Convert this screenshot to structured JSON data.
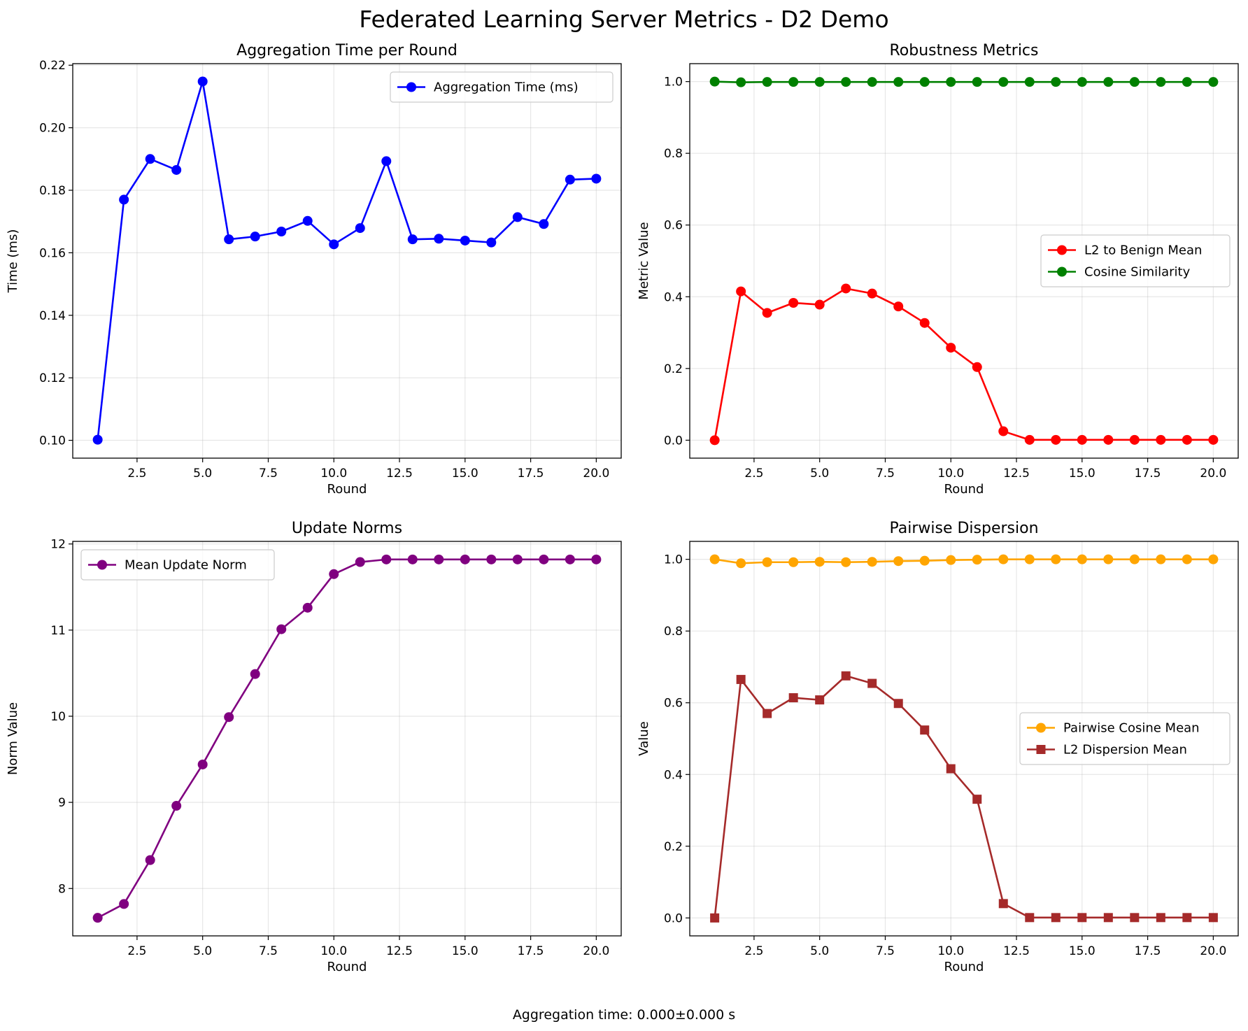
{
  "figure": {
    "title": "Federated Learning Server Metrics - D2 Demo",
    "footer": "Aggregation time: 0.000±0.000 s"
  },
  "chart_data": [
    {
      "type": "line",
      "title": "Aggregation Time per Round",
      "xlabel": "Round",
      "ylabel": "Time (ms)",
      "xlim": [
        0.05,
        20.95
      ],
      "ylim": [
        0.0943,
        0.2205
      ],
      "xticks": [
        2.5,
        5.0,
        7.5,
        10.0,
        12.5,
        15.0,
        17.5,
        20.0
      ],
      "xtick_labels": [
        "2.5",
        "5.0",
        "7.5",
        "10.0",
        "12.5",
        "15.0",
        "17.5",
        "20.0"
      ],
      "yticks": [
        0.1,
        0.12,
        0.14,
        0.16,
        0.18,
        0.2,
        0.22
      ],
      "ytick_labels": [
        "0.10",
        "0.12",
        "0.14",
        "0.16",
        "0.18",
        "0.20",
        "0.22"
      ],
      "grid": true,
      "legend": "upper right",
      "x": [
        1,
        2,
        3,
        4,
        5,
        6,
        7,
        8,
        9,
        10,
        11,
        12,
        13,
        14,
        15,
        16,
        17,
        18,
        19,
        20
      ],
      "series": [
        {
          "name": "Aggregation Time (ms)",
          "color": "#0000ff",
          "marker": "circle",
          "values": [
            0.1002,
            0.177,
            0.19,
            0.1865,
            0.2148,
            0.1643,
            0.1652,
            0.1668,
            0.1702,
            0.1627,
            0.1679,
            0.1893,
            0.1643,
            0.1645,
            0.1639,
            0.1633,
            0.1714,
            0.1692,
            0.1834,
            0.1837
          ]
        }
      ]
    },
    {
      "type": "line",
      "title": "Robustness Metrics",
      "xlabel": "Round",
      "ylabel": "Metric Value",
      "xlim": [
        0.05,
        20.95
      ],
      "ylim": [
        -0.05,
        1.05
      ],
      "xticks": [
        2.5,
        5.0,
        7.5,
        10.0,
        12.5,
        15.0,
        17.5,
        20.0
      ],
      "xtick_labels": [
        "2.5",
        "5.0",
        "7.5",
        "10.0",
        "12.5",
        "15.0",
        "17.5",
        "20.0"
      ],
      "yticks": [
        0.0,
        0.2,
        0.4,
        0.6,
        0.8,
        1.0
      ],
      "ytick_labels": [
        "0.0",
        "0.2",
        "0.4",
        "0.6",
        "0.8",
        "1.0"
      ],
      "grid": true,
      "legend": "center right",
      "x": [
        1,
        2,
        3,
        4,
        5,
        6,
        7,
        8,
        9,
        10,
        11,
        12,
        13,
        14,
        15,
        16,
        17,
        18,
        19,
        20
      ],
      "series": [
        {
          "name": "L2 to Benign Mean",
          "color": "#ff0000",
          "marker": "circle",
          "values": [
            0.0,
            0.415,
            0.355,
            0.383,
            0.378,
            0.423,
            0.409,
            0.373,
            0.327,
            0.258,
            0.204,
            0.025,
            0.001,
            0.001,
            0.001,
            0.001,
            0.001,
            0.001,
            0.001,
            0.001
          ]
        },
        {
          "name": "Cosine Similarity",
          "color": "#008000",
          "marker": "circle",
          "values": [
            1.0,
            0.998,
            0.999,
            0.999,
            0.999,
            0.999,
            0.999,
            0.999,
            0.999,
            0.999,
            0.999,
            0.999,
            0.999,
            0.999,
            0.999,
            0.999,
            0.999,
            0.999,
            0.999,
            0.999
          ]
        }
      ]
    },
    {
      "type": "line",
      "title": "Update Norms",
      "xlabel": "Round",
      "ylabel": "Norm Value",
      "xlim": [
        0.05,
        20.95
      ],
      "ylim": [
        7.45,
        12.03
      ],
      "xticks": [
        2.5,
        5.0,
        7.5,
        10.0,
        12.5,
        15.0,
        17.5,
        20.0
      ],
      "xtick_labels": [
        "2.5",
        "5.0",
        "7.5",
        "10.0",
        "12.5",
        "15.0",
        "17.5",
        "20.0"
      ],
      "yticks": [
        8,
        9,
        10,
        11,
        12
      ],
      "ytick_labels": [
        "8",
        "9",
        "10",
        "11",
        "12"
      ],
      "grid": true,
      "legend": "upper left",
      "x": [
        1,
        2,
        3,
        4,
        5,
        6,
        7,
        8,
        9,
        10,
        11,
        12,
        13,
        14,
        15,
        16,
        17,
        18,
        19,
        20
      ],
      "series": [
        {
          "name": "Mean Update Norm",
          "color": "#800080",
          "marker": "circle",
          "values": [
            7.66,
            7.82,
            8.33,
            8.96,
            9.44,
            9.99,
            10.49,
            11.01,
            11.26,
            11.65,
            11.79,
            11.82,
            11.82,
            11.82,
            11.82,
            11.82,
            11.82,
            11.82,
            11.82,
            11.82
          ]
        }
      ]
    },
    {
      "type": "line",
      "title": "Pairwise Dispersion",
      "xlabel": "Round",
      "ylabel": "Value",
      "xlim": [
        0.05,
        20.95
      ],
      "ylim": [
        -0.05,
        1.05
      ],
      "xticks": [
        2.5,
        5.0,
        7.5,
        10.0,
        12.5,
        15.0,
        17.5,
        20.0
      ],
      "xtick_labels": [
        "2.5",
        "5.0",
        "7.5",
        "10.0",
        "12.5",
        "15.0",
        "17.5",
        "20.0"
      ],
      "yticks": [
        0.0,
        0.2,
        0.4,
        0.6,
        0.8,
        1.0
      ],
      "ytick_labels": [
        "0.0",
        "0.2",
        "0.4",
        "0.6",
        "0.8",
        "1.0"
      ],
      "grid": true,
      "legend": "center right",
      "x": [
        1,
        2,
        3,
        4,
        5,
        6,
        7,
        8,
        9,
        10,
        11,
        12,
        13,
        14,
        15,
        16,
        17,
        18,
        19,
        20
      ],
      "series": [
        {
          "name": "Pairwise Cosine Mean",
          "color": "#ffa500",
          "marker": "circle",
          "values": [
            1.0,
            0.989,
            0.992,
            0.992,
            0.993,
            0.992,
            0.993,
            0.995,
            0.996,
            0.998,
            0.999,
            1.0,
            1.0,
            1.0,
            1.0,
            1.0,
            1.0,
            1.0,
            1.0,
            1.0
          ]
        },
        {
          "name": "L2 Dispersion Mean",
          "color": "#a52a2a",
          "marker": "square",
          "values": [
            0.0,
            0.665,
            0.57,
            0.614,
            0.608,
            0.675,
            0.654,
            0.598,
            0.524,
            0.416,
            0.331,
            0.04,
            0.001,
            0.001,
            0.001,
            0.001,
            0.001,
            0.001,
            0.001,
            0.001
          ]
        }
      ]
    }
  ]
}
